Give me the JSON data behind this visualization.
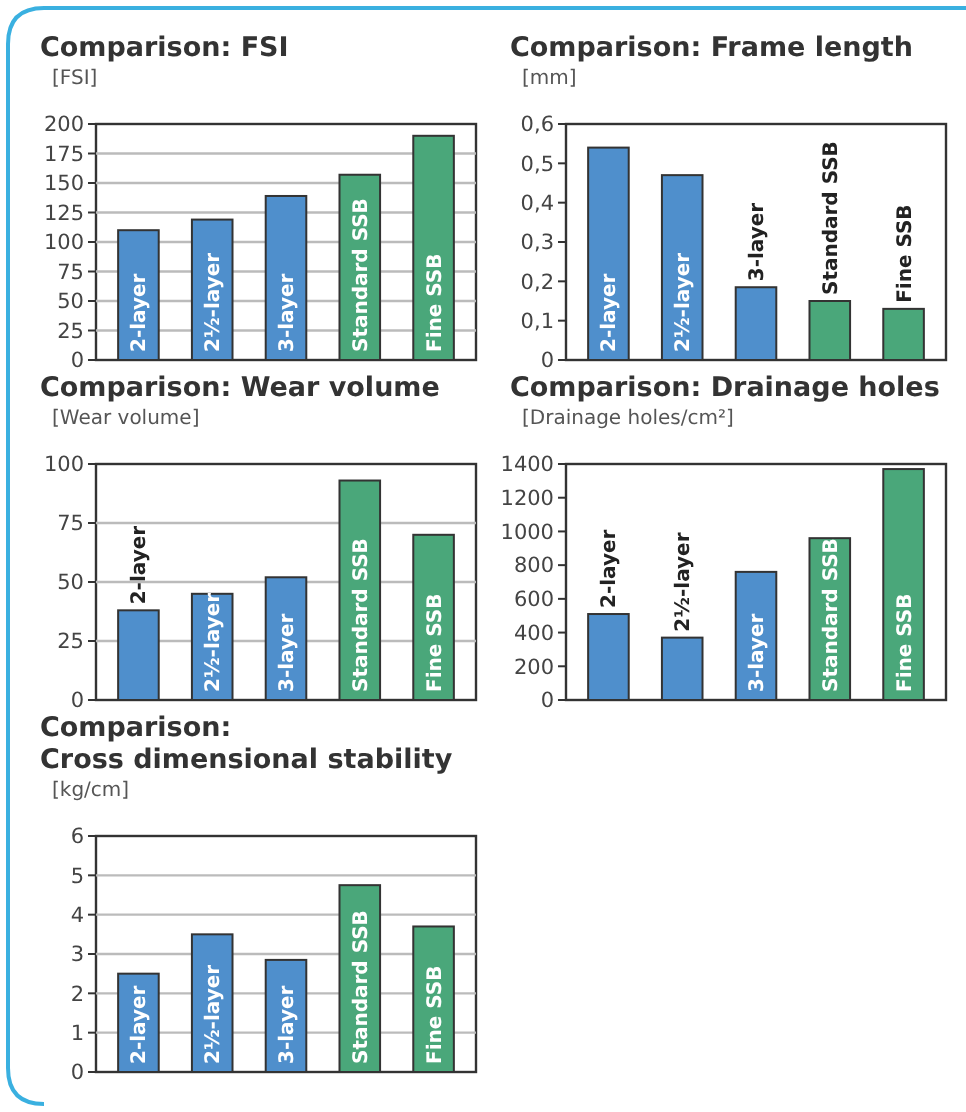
{
  "chart_data": [
    {
      "type": "bar",
      "title": "Comparison: FSI",
      "ylabel": "[FSI]",
      "categories": [
        "2-layer",
        "2½-layer",
        "3-layer",
        "Standard SSB",
        "Fine SSB"
      ],
      "values": [
        110,
        119,
        139,
        157,
        190
      ],
      "colors": [
        "#4f8fcc",
        "#4f8fcc",
        "#4f8fcc",
        "#4aa77a",
        "#4aa77a"
      ],
      "ylim": [
        0,
        200
      ],
      "yticks": [
        0,
        25,
        50,
        75,
        100,
        125,
        150,
        175,
        200
      ],
      "grid": "y"
    },
    {
      "type": "bar",
      "title": "Comparison: Frame length",
      "ylabel": "[mm]",
      "categories": [
        "2-layer",
        "2½-layer",
        "3-layer",
        "Standard SSB",
        "Fine SSB"
      ],
      "values": [
        0.54,
        0.47,
        0.185,
        0.15,
        0.13
      ],
      "colors": [
        "#4f8fcc",
        "#4f8fcc",
        "#4f8fcc",
        "#4aa77a",
        "#4aa77a"
      ],
      "ylim": [
        0,
        0.6
      ],
      "yticks": [
        0,
        {
          "value": 0.1,
          "label": "0,1"
        },
        {
          "value": 0.2,
          "label": "0,2"
        },
        {
          "value": 0.3,
          "label": "0,3"
        },
        {
          "value": 0.4,
          "label": "0,4"
        },
        {
          "value": 0.5,
          "label": "0,5"
        },
        {
          "value": 0.6,
          "label": "0,6"
        }
      ]
    },
    {
      "type": "bar",
      "title": "Comparison: Wear volume",
      "ylabel": "[Wear volume]",
      "categories": [
        "2-layer",
        "2½-layer",
        "3-layer",
        "Standard SSB",
        "Fine SSB"
      ],
      "values": [
        38,
        45,
        52,
        93,
        70
      ],
      "colors": [
        "#4f8fcc",
        "#4f8fcc",
        "#4f8fcc",
        "#4aa77a",
        "#4aa77a"
      ],
      "ylim": [
        0,
        100
      ],
      "yticks": [
        0,
        25,
        50,
        75,
        100
      ],
      "grid": "y"
    },
    {
      "type": "bar",
      "title": "Comparison: Drainage holes",
      "ylabel": "[Drainage holes/cm²]",
      "categories": [
        "2-layer",
        "2½-layer",
        "3-layer",
        "Standard SSB",
        "Fine SSB"
      ],
      "values": [
        510,
        370,
        760,
        960,
        1370
      ],
      "colors": [
        "#4f8fcc",
        "#4f8fcc",
        "#4f8fcc",
        "#4aa77a",
        "#4aa77a"
      ],
      "ylim": [
        0,
        1400
      ],
      "yticks": [
        0,
        200,
        400,
        600,
        800,
        1000,
        1200,
        1400
      ]
    },
    {
      "type": "bar",
      "title": "Comparison: Cross dimensional stability",
      "ylabel": "[kg/cm]",
      "categories": [
        "2-layer",
        "2½-layer",
        "3-layer",
        "Standard SSB",
        "Fine SSB"
      ],
      "values": [
        2.5,
        3.5,
        2.85,
        4.75,
        3.7
      ],
      "colors": [
        "#4f8fcc",
        "#4f8fcc",
        "#4f8fcc",
        "#4aa77a",
        "#4aa77a"
      ],
      "ylim": [
        0,
        6
      ],
      "yticks": [
        0,
        1,
        2,
        3,
        4,
        5,
        6
      ],
      "grid": "y"
    }
  ]
}
